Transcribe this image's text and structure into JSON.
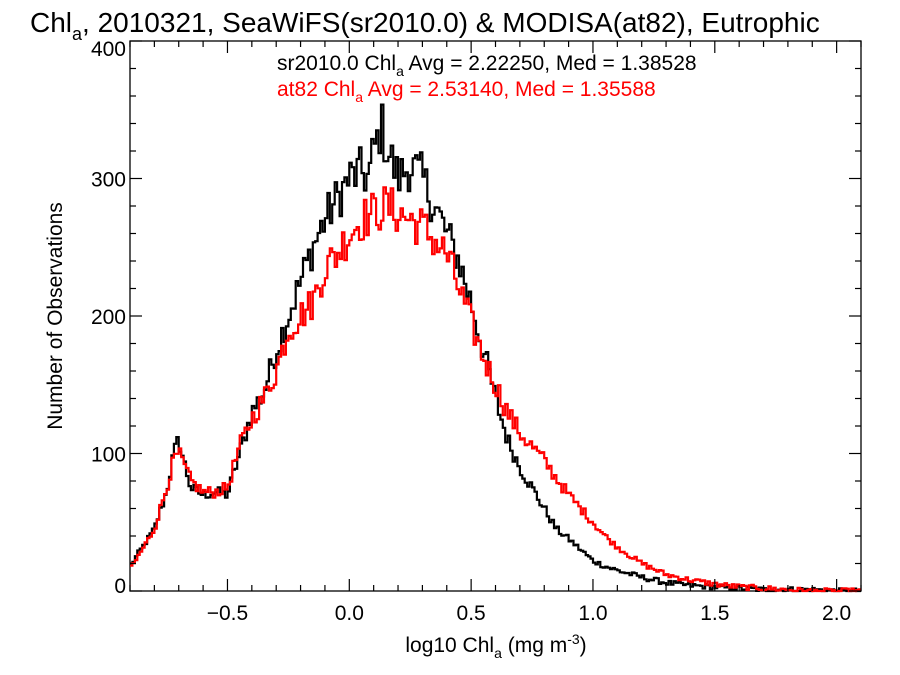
{
  "chart_data": {
    "type": "line",
    "title": {
      "pre": "Chl",
      "sub": "a",
      "post": ", 2010321, SeaWiFS(sr2010.0) & MODISA(at82), Eutrophic"
    },
    "xlabel": {
      "pre": "log10 Chl",
      "sub": "a",
      "mid": " (mg m",
      "sup": "-3",
      "post": ")"
    },
    "ylabel": "Number of Observations",
    "xlim": [
      -0.9,
      2.1
    ],
    "ylim": [
      0,
      400
    ],
    "xticks": [
      {
        "v": -0.5,
        "label": "−0.5"
      },
      {
        "v": 0.0,
        "label": "0.0"
      },
      {
        "v": 0.5,
        "label": "0.5"
      },
      {
        "v": 1.0,
        "label": "1.0"
      },
      {
        "v": 1.5,
        "label": "1.5"
      },
      {
        "v": 2.0,
        "label": "2.0"
      }
    ],
    "yticks": [
      {
        "v": 0,
        "label": "0"
      },
      {
        "v": 100,
        "label": "100"
      },
      {
        "v": 200,
        "label": "200"
      },
      {
        "v": 300,
        "label": "300"
      },
      {
        "v": 400,
        "label": "400"
      }
    ],
    "grid": false,
    "bin_width": 0.02,
    "annotations": [
      {
        "pre": "sr2010.0 Chl",
        "sub": "a",
        "post": " Avg = 2.22250, Med = 1.38528",
        "color": "#000000"
      },
      {
        "pre": "at82 Chl",
        "sub": "a",
        "post": " Avg = 2.53140, Med = 1.35588",
        "color": "#ff0000"
      }
    ],
    "series": [
      {
        "color": "#000000",
        "style": "step",
        "x": [
          -0.9,
          -0.8,
          -0.75,
          -0.72,
          -0.7,
          -0.68,
          -0.65,
          -0.6,
          -0.55,
          -0.5,
          -0.45,
          -0.4,
          -0.35,
          -0.3,
          -0.25,
          -0.2,
          -0.15,
          -0.1,
          -0.05,
          0.0,
          0.05,
          0.08,
          0.1,
          0.12,
          0.13,
          0.15,
          0.2,
          0.25,
          0.3,
          0.35,
          0.4,
          0.45,
          0.5,
          0.55,
          0.6,
          0.65,
          0.7,
          0.75,
          0.8,
          0.85,
          0.9,
          0.95,
          1.0,
          1.05,
          1.1,
          1.2,
          1.3,
          1.4,
          1.5,
          1.6,
          1.7,
          1.8,
          1.9,
          2.0
        ],
        "y": [
          18,
          45,
          72,
          100,
          110,
          95,
          75,
          70,
          72,
          70,
          100,
          130,
          145,
          175,
          200,
          225,
          250,
          270,
          285,
          300,
          305,
          300,
          320,
          330,
          340,
          325,
          300,
          310,
          300,
          280,
          260,
          240,
          210,
          175,
          140,
          110,
          90,
          75,
          60,
          45,
          38,
          30,
          22,
          18,
          15,
          10,
          6,
          4,
          3,
          2,
          1,
          1,
          1,
          0
        ]
      },
      {
        "color": "#ff0000",
        "style": "step",
        "x": [
          -0.9,
          -0.8,
          -0.75,
          -0.72,
          -0.7,
          -0.68,
          -0.65,
          -0.6,
          -0.55,
          -0.5,
          -0.45,
          -0.4,
          -0.35,
          -0.3,
          -0.25,
          -0.2,
          -0.15,
          -0.1,
          -0.05,
          0.0,
          0.05,
          0.1,
          0.15,
          0.2,
          0.25,
          0.3,
          0.35,
          0.4,
          0.45,
          0.5,
          0.55,
          0.6,
          0.65,
          0.7,
          0.75,
          0.8,
          0.85,
          0.9,
          0.95,
          1.0,
          1.05,
          1.1,
          1.2,
          1.3,
          1.4,
          1.5,
          1.6,
          1.7,
          1.8,
          1.9,
          2.0
        ],
        "y": [
          15,
          45,
          75,
          95,
          100,
          92,
          80,
          72,
          72,
          75,
          105,
          125,
          140,
          160,
          190,
          200,
          210,
          235,
          245,
          260,
          270,
          275,
          280,
          275,
          270,
          265,
          255,
          245,
          220,
          195,
          170,
          150,
          130,
          115,
          105,
          95,
          82,
          70,
          60,
          50,
          40,
          32,
          20,
          12,
          8,
          5,
          3,
          2,
          1,
          0,
          0
        ]
      }
    ]
  }
}
